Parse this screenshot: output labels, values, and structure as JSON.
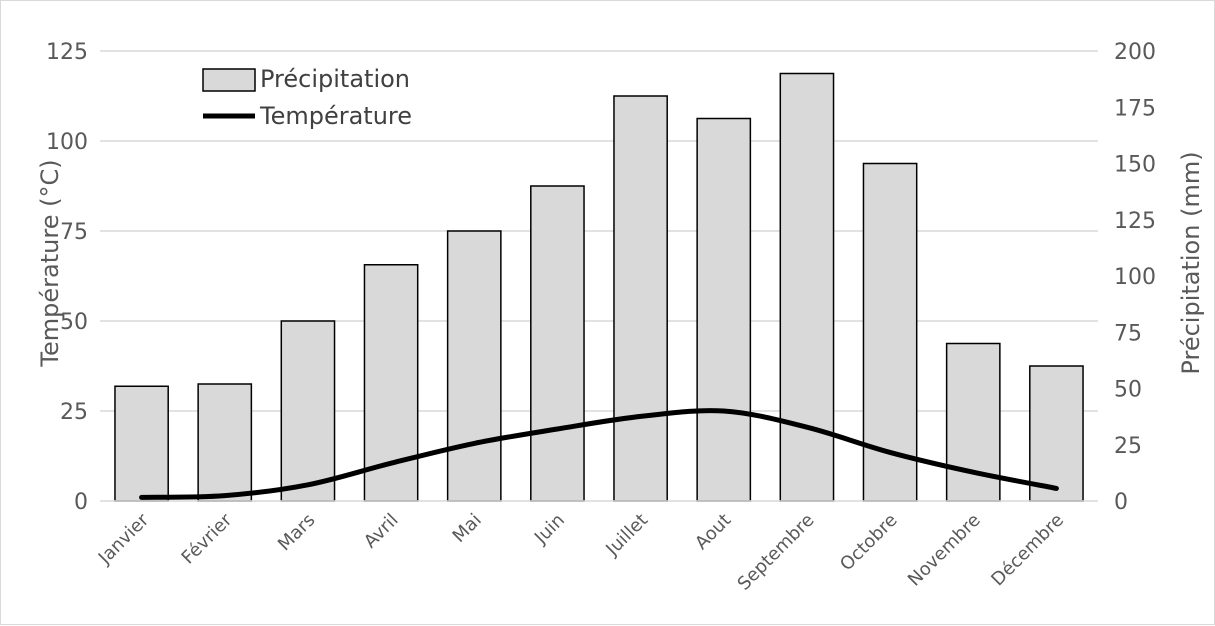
{
  "chart_data": {
    "type": "bar",
    "categories": [
      "Janvier",
      "Février",
      "Mars",
      "Avril",
      "Mai",
      "Juin",
      "Juillet",
      "Aout",
      "Septembre",
      "Octobre",
      "Novembre",
      "Décembre"
    ],
    "series": [
      {
        "name": "Précipitation",
        "type": "bar",
        "axis": "right",
        "values": [
          51,
          52,
          80,
          105,
          120,
          140,
          180,
          170,
          190,
          150,
          70,
          60
        ]
      },
      {
        "name": "Température",
        "type": "line",
        "axis": "left",
        "values": [
          1,
          1.5,
          4.5,
          10.5,
          16,
          20,
          23.5,
          25,
          20.5,
          13.5,
          8,
          3.5
        ]
      }
    ],
    "y_left": {
      "label": "Température (°C)",
      "min": 0,
      "max": 125,
      "ticks": [
        0,
        25,
        50,
        75,
        100,
        125
      ]
    },
    "y_right": {
      "label": "Précipitation (mm)",
      "min": 0,
      "max": 200,
      "ticks": [
        0,
        25,
        50,
        75,
        100,
        125,
        150,
        175,
        200
      ]
    },
    "grid": true,
    "legend_position": "top-left",
    "colors": {
      "bar_fill": "#d9d9d9",
      "bar_stroke": "#000000",
      "line": "#000000",
      "grid": "#d9d9d9",
      "text": "#595959"
    }
  }
}
